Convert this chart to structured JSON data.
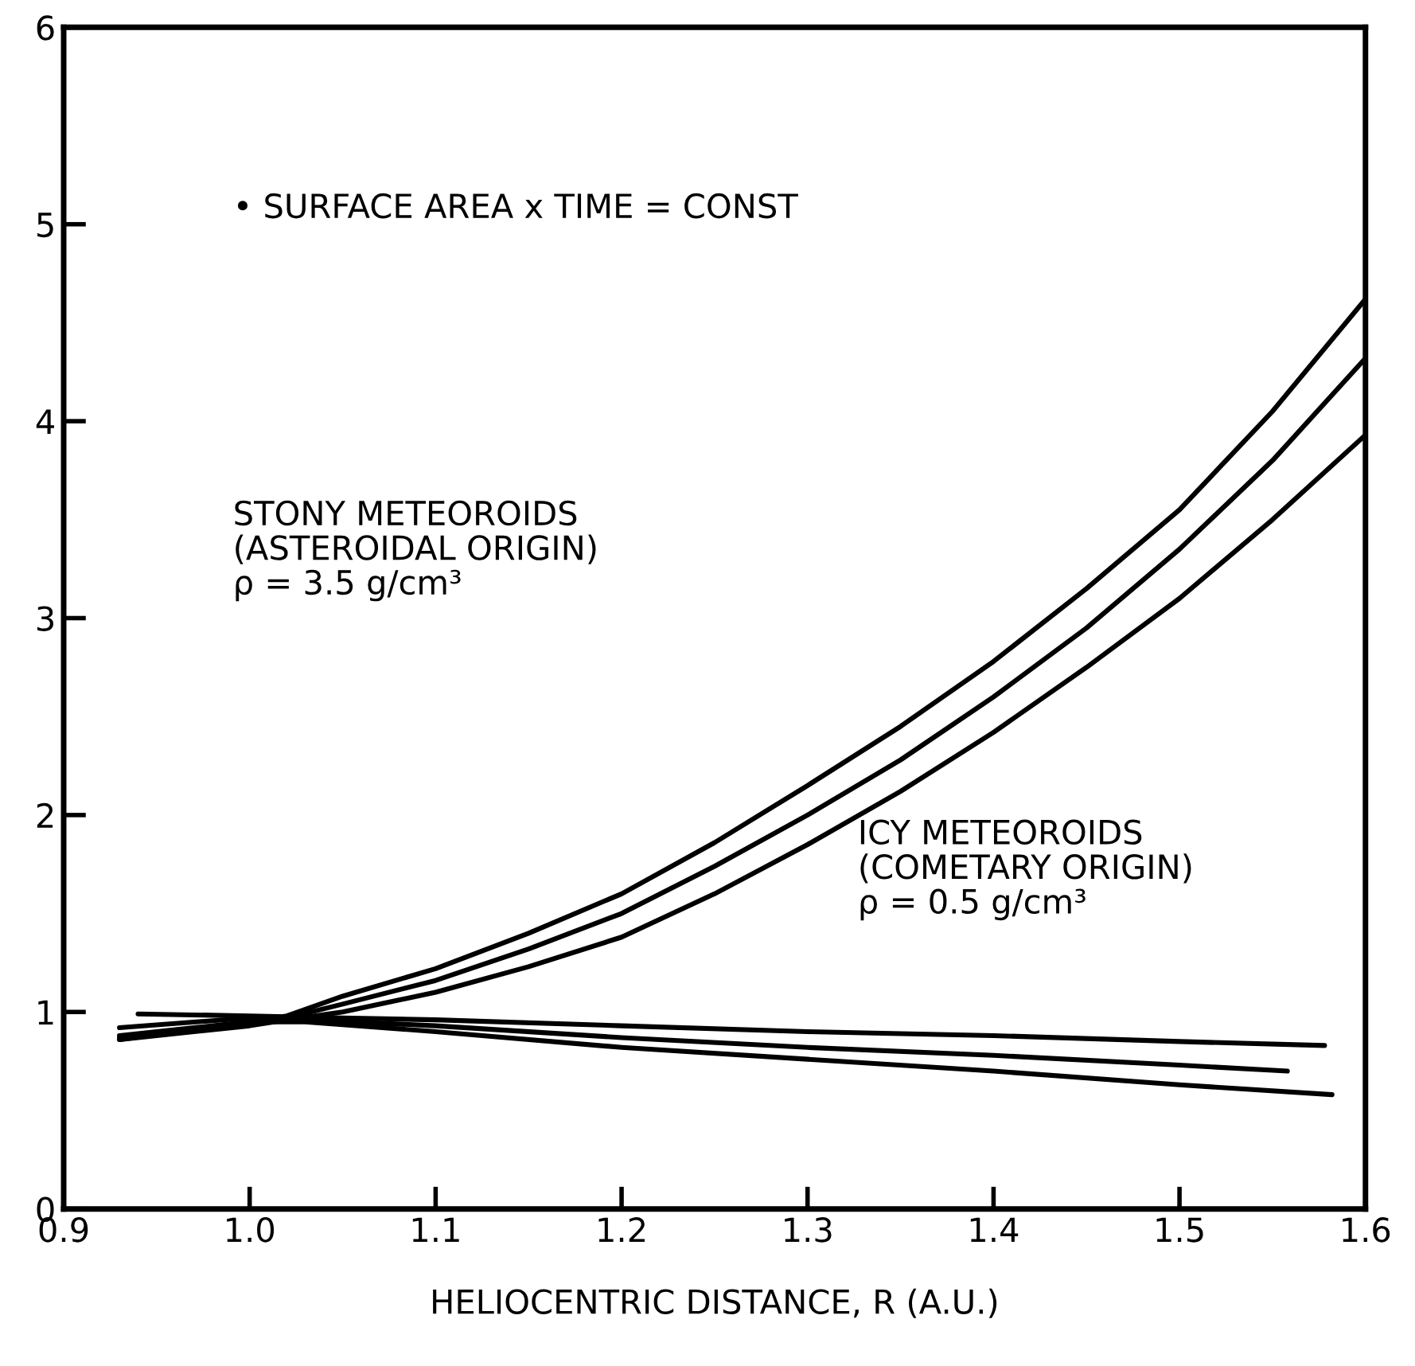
{
  "chart_data": {
    "type": "line",
    "xlabel": "HELIOCENTRIC DISTANCE, R (A.U.)",
    "xlim": [
      0.9,
      1.6
    ],
    "ylim": [
      0,
      6
    ],
    "xticks": [
      {
        "value": 0.9,
        "label": "0.9"
      },
      {
        "value": 1.0,
        "label": "1.0"
      },
      {
        "value": 1.1,
        "label": "1.1"
      },
      {
        "value": 1.2,
        "label": "1.2"
      },
      {
        "value": 1.3,
        "label": "1.3"
      },
      {
        "value": 1.4,
        "label": "1.4"
      },
      {
        "value": 1.5,
        "label": "1.5"
      },
      {
        "value": 1.6,
        "label": "1.6"
      }
    ],
    "yticks": [
      0,
      1,
      2,
      3,
      4,
      5,
      6
    ],
    "grid": false,
    "legend": false,
    "marker": "none",
    "line_style": "solid",
    "series": [
      {
        "color": "#000000",
        "x": [
          0.93,
          0.97,
          1.0,
          1.02,
          1.05,
          1.1,
          1.15,
          1.2,
          1.25,
          1.3,
          1.35,
          1.4,
          1.45,
          1.5,
          1.55,
          1.6
        ],
        "values": [
          0.88,
          0.92,
          0.95,
          0.98,
          1.08,
          1.22,
          1.4,
          1.6,
          1.86,
          2.15,
          2.45,
          2.78,
          3.15,
          3.55,
          4.05,
          4.62
        ]
      },
      {
        "color": "#000000",
        "x": [
          0.93,
          0.97,
          1.0,
          1.02,
          1.05,
          1.1,
          1.15,
          1.2,
          1.25,
          1.3,
          1.35,
          1.4,
          1.45,
          1.5,
          1.55,
          1.6
        ],
        "values": [
          0.87,
          0.91,
          0.94,
          0.97,
          1.04,
          1.16,
          1.32,
          1.5,
          1.74,
          2.0,
          2.28,
          2.6,
          2.95,
          3.35,
          3.8,
          4.32
        ]
      },
      {
        "color": "#000000",
        "x": [
          0.93,
          0.97,
          1.0,
          1.02,
          1.05,
          1.1,
          1.15,
          1.2,
          1.25,
          1.3,
          1.35,
          1.4,
          1.45,
          1.5,
          1.55,
          1.6
        ],
        "values": [
          0.86,
          0.9,
          0.93,
          0.96,
          1.0,
          1.1,
          1.23,
          1.38,
          1.6,
          1.85,
          2.12,
          2.42,
          2.75,
          3.1,
          3.5,
          3.93
        ]
      },
      {
        "color": "#000000",
        "x": [
          0.94,
          1.0,
          1.05,
          1.1,
          1.2,
          1.3,
          1.4,
          1.5,
          1.578
        ],
        "values": [
          0.99,
          0.98,
          0.97,
          0.96,
          0.93,
          0.9,
          0.88,
          0.85,
          0.83
        ]
      },
      {
        "color": "#000000",
        "x": [
          0.93,
          1.0,
          1.03,
          1.1,
          1.2,
          1.3,
          1.4,
          1.5,
          1.558
        ],
        "values": [
          0.92,
          0.97,
          0.96,
          0.93,
          0.87,
          0.82,
          0.78,
          0.73,
          0.7
        ]
      },
      {
        "color": "#000000",
        "x": [
          0.93,
          1.0,
          1.03,
          1.1,
          1.2,
          1.3,
          1.4,
          1.5,
          1.582
        ],
        "values": [
          0.86,
          0.95,
          0.95,
          0.9,
          0.82,
          0.76,
          0.7,
          0.63,
          0.58
        ]
      }
    ],
    "annotations": [
      "• SURFACE AREA x TIME = CONST",
      "STONY METEOROIDS\n(ASTEROIDAL ORIGIN)\nρ = 3.5 g/cm³",
      "ICY METEOROIDS\n(COMETARY ORIGIN)\nρ = 0.5 g/cm³"
    ]
  }
}
